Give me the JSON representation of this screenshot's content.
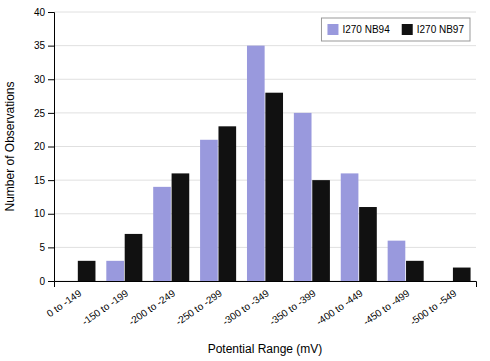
{
  "chart_data": {
    "type": "bar",
    "categories": [
      "0 to -149",
      "-150 to -199",
      "-200 to -249",
      "-250 to -299",
      "-300 to -349",
      "-350 to -399",
      "-400 to -449",
      "-450 to -499",
      "-500 to -549"
    ],
    "series": [
      {
        "name": "I270 NB94",
        "color": "#9999dd",
        "values": [
          0,
          3,
          14,
          21,
          35,
          25,
          16,
          6,
          0
        ]
      },
      {
        "name": "I270 NB97",
        "color": "#111111",
        "values": [
          3,
          7,
          16,
          23,
          28,
          15,
          11,
          3,
          2
        ]
      }
    ],
    "xlabel": "Potential Range (mV)",
    "ylabel": "Number of Observations",
    "ylim": [
      0,
      40
    ],
    "yticks": [
      0,
      5,
      10,
      15,
      20,
      25,
      30,
      35,
      40
    ],
    "grid": true,
    "legend": "upper right"
  }
}
